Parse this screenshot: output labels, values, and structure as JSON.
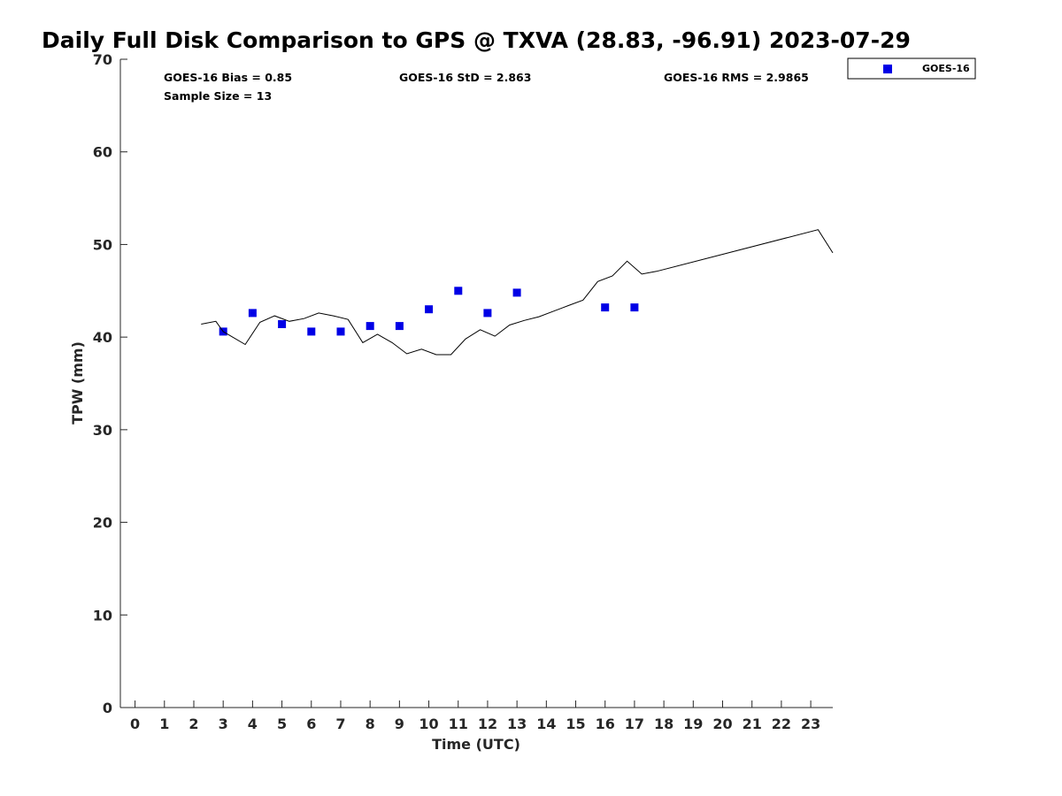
{
  "chart_data": {
    "type": "scatter",
    "title": "Daily Full Disk Comparison to GPS @ TXVA (28.83, -96.91) 2023-07-29",
    "xlabel": "Time (UTC)",
    "ylabel": "TPW (mm)",
    "xlim": [
      -0.5,
      23.75
    ],
    "ylim": [
      0,
      70
    ],
    "xticks": [
      "0",
      "1",
      "2",
      "3",
      "4",
      "5",
      "6",
      "7",
      "8",
      "9",
      "10",
      "11",
      "12",
      "13",
      "14",
      "15",
      "16",
      "17",
      "18",
      "19",
      "20",
      "21",
      "22",
      "23"
    ],
    "yticks": [
      "0",
      "10",
      "20",
      "30",
      "40",
      "50",
      "60",
      "70"
    ],
    "grid": false,
    "legend_position": "top-right",
    "stats": {
      "bias": "GOES-16 Bias = 0.85",
      "std": "GOES-16 StD = 2.863",
      "rms": "GOES-16 RMS = 2.9865",
      "sample_size": "Sample Size = 13"
    },
    "series": [
      {
        "name": "GOES-16",
        "kind": "scatter",
        "marker": "square",
        "color": "#0000e6",
        "x": [
          3,
          4,
          5,
          6,
          7,
          8,
          9,
          10,
          11,
          12,
          13,
          16,
          17
        ],
        "y": [
          40.6,
          42.6,
          41.4,
          40.6,
          40.6,
          41.2,
          41.2,
          43.0,
          45.0,
          42.6,
          44.8,
          43.2,
          43.2
        ]
      },
      {
        "kind": "line",
        "color": "#000000",
        "x": [
          2.25,
          2.75,
          3.0,
          3.75,
          4.25,
          4.75,
          5.25,
          5.75,
          6.25,
          6.75,
          7.25,
          7.75,
          8.25,
          8.75,
          9.25,
          9.75,
          10.25,
          10.75,
          11.25,
          11.75,
          12.25,
          12.75,
          13.25,
          13.75,
          14.25,
          14.75,
          15.25,
          15.75,
          16.25,
          16.75,
          17.25,
          17.75,
          23.25,
          23.75
        ],
        "y": [
          41.4,
          41.7,
          40.6,
          39.2,
          41.6,
          42.3,
          41.7,
          42.0,
          42.6,
          42.3,
          41.9,
          39.4,
          40.3,
          39.4,
          38.2,
          38.7,
          38.1,
          38.1,
          39.8,
          40.8,
          40.1,
          41.3,
          41.8,
          42.2,
          42.8,
          43.4,
          44.0,
          46.0,
          46.6,
          48.2,
          46.8,
          47.1,
          51.6,
          49.1
        ]
      }
    ]
  }
}
